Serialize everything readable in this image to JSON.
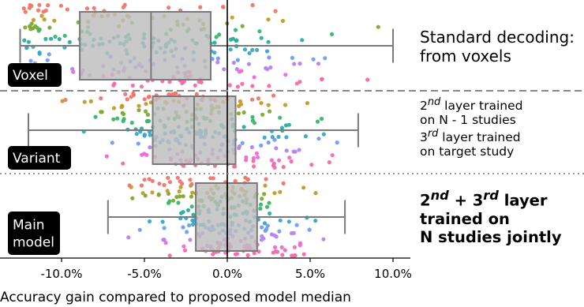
{
  "chart_data": {
    "type": "box+strip",
    "xlabel": "Accuracy gain compared to proposed model median",
    "xlim": [
      -12.5,
      11
    ],
    "xticks": [
      -10,
      -5,
      0,
      5,
      10
    ],
    "xtick_labels": [
      "-10.0%",
      "-5.0%",
      "0.0%",
      "5.0%",
      "10.0%"
    ],
    "reference_line_x": 0,
    "groups": [
      {
        "name": "Voxel",
        "label_lines": [
          "Voxel"
        ],
        "whisker_low": -12.5,
        "q1": -8.9,
        "median": -4.6,
        "q3": -1.0,
        "whisker_high": 10.0
      },
      {
        "name": "Variant",
        "label_lines": [
          "Variant"
        ],
        "whisker_low": -12.0,
        "q1": -4.5,
        "median": -2.0,
        "q3": 0.5,
        "whisker_high": 7.9
      },
      {
        "name": "Main model",
        "label_lines": [
          "Main",
          "model"
        ],
        "whisker_low": -7.2,
        "q1": -1.9,
        "median": 0.0,
        "q3": 1.8,
        "whisker_high": 7.1
      }
    ],
    "annotations": [
      {
        "lines": [
          {
            "text": "Standard decoding:"
          },
          {
            "text": "from voxels"
          }
        ]
      },
      {
        "lines": [
          {
            "pre": "2",
            "sup": "nd",
            "post": " layer trained"
          },
          {
            "text": "on N - 1 studies"
          },
          {
            "pre": "3",
            "sup": "rd",
            "post": " layer trained"
          },
          {
            "text": "on target study"
          }
        ]
      },
      {
        "lines": [
          {
            "pre": "2",
            "sup": "nd",
            "post": " + 3",
            "sup2": "rd",
            "post2": " layer"
          },
          {
            "text": "trained on"
          },
          {
            "text": "N studies jointly"
          }
        ]
      }
    ],
    "separators": [
      {
        "style": "dashed"
      },
      {
        "style": "dotted"
      }
    ],
    "box_color": "#bdbdbd",
    "box_edge_color": "#7a7a7a",
    "point_palette": [
      "#f0756a",
      "#c39a2c",
      "#7daa2e",
      "#3bb56a",
      "#2aaea0",
      "#35a9c8",
      "#6e9df5",
      "#b583f2",
      "#ec6bd4",
      "#f46aa6"
    ],
    "grid": false
  }
}
